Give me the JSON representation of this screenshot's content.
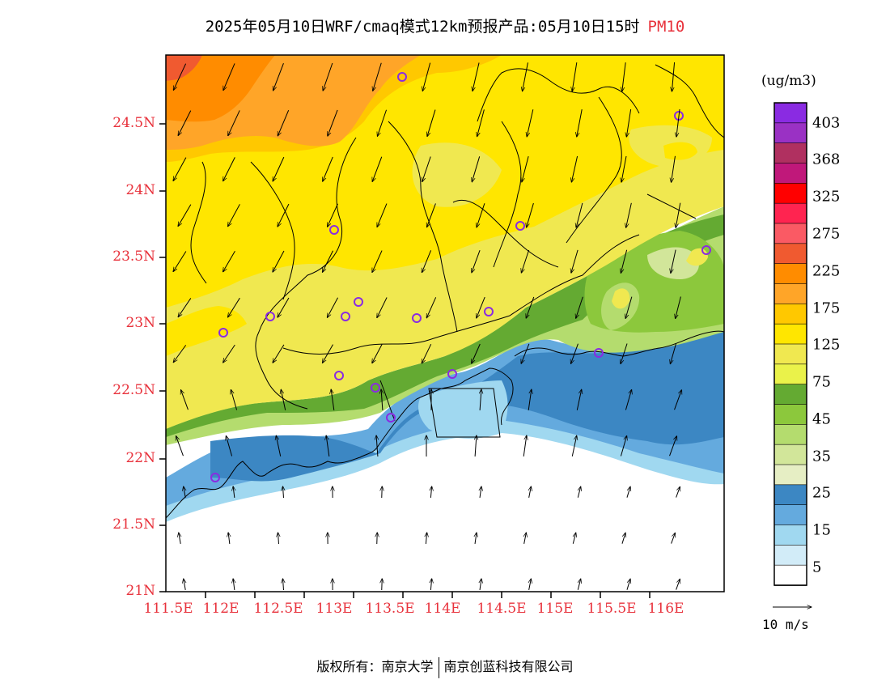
{
  "title": {
    "main": "2025年05月10日WRF/cmaq模式12km预报产品:05月10日15时",
    "variable": "PM10"
  },
  "axes": {
    "lat_ticks": [
      "24.5N",
      "24N",
      "23.5N",
      "23N",
      "22.5N",
      "22N",
      "21.5N",
      "21N"
    ],
    "lon_ticks": [
      "111.5E",
      "112E",
      "112.5E",
      "113E",
      "113.5E",
      "114E",
      "114.5E",
      "115E",
      "115.5E",
      "116E"
    ]
  },
  "colorbar": {
    "unit": "(ug/m3)",
    "labels": [
      "403",
      "368",
      "325",
      "275",
      "225",
      "175",
      "125",
      "75",
      "45",
      "35",
      "25",
      "15",
      "5"
    ],
    "colors": [
      "#8a2be2",
      "#9a31c4",
      "#b03060",
      "#c0187a",
      "#ff0000",
      "#ff2450",
      "#fa5a64",
      "#f05a30",
      "#ff8c00",
      "#ffa528",
      "#ffc800",
      "#ffe600",
      "#f0e850",
      "#eaf24a",
      "#64aa32",
      "#8cc83c",
      "#b4dc6e",
      "#d2e69a",
      "#e6eec4",
      "#3c87c3",
      "#64aade",
      "#a0d8f0",
      "#d2ecf8",
      "#ffffff"
    ]
  },
  "wind": {
    "label": "10 m/s"
  },
  "footer": {
    "left": "版权所有：南京大学",
    "right": "南京创蓝科技有限公司"
  }
}
